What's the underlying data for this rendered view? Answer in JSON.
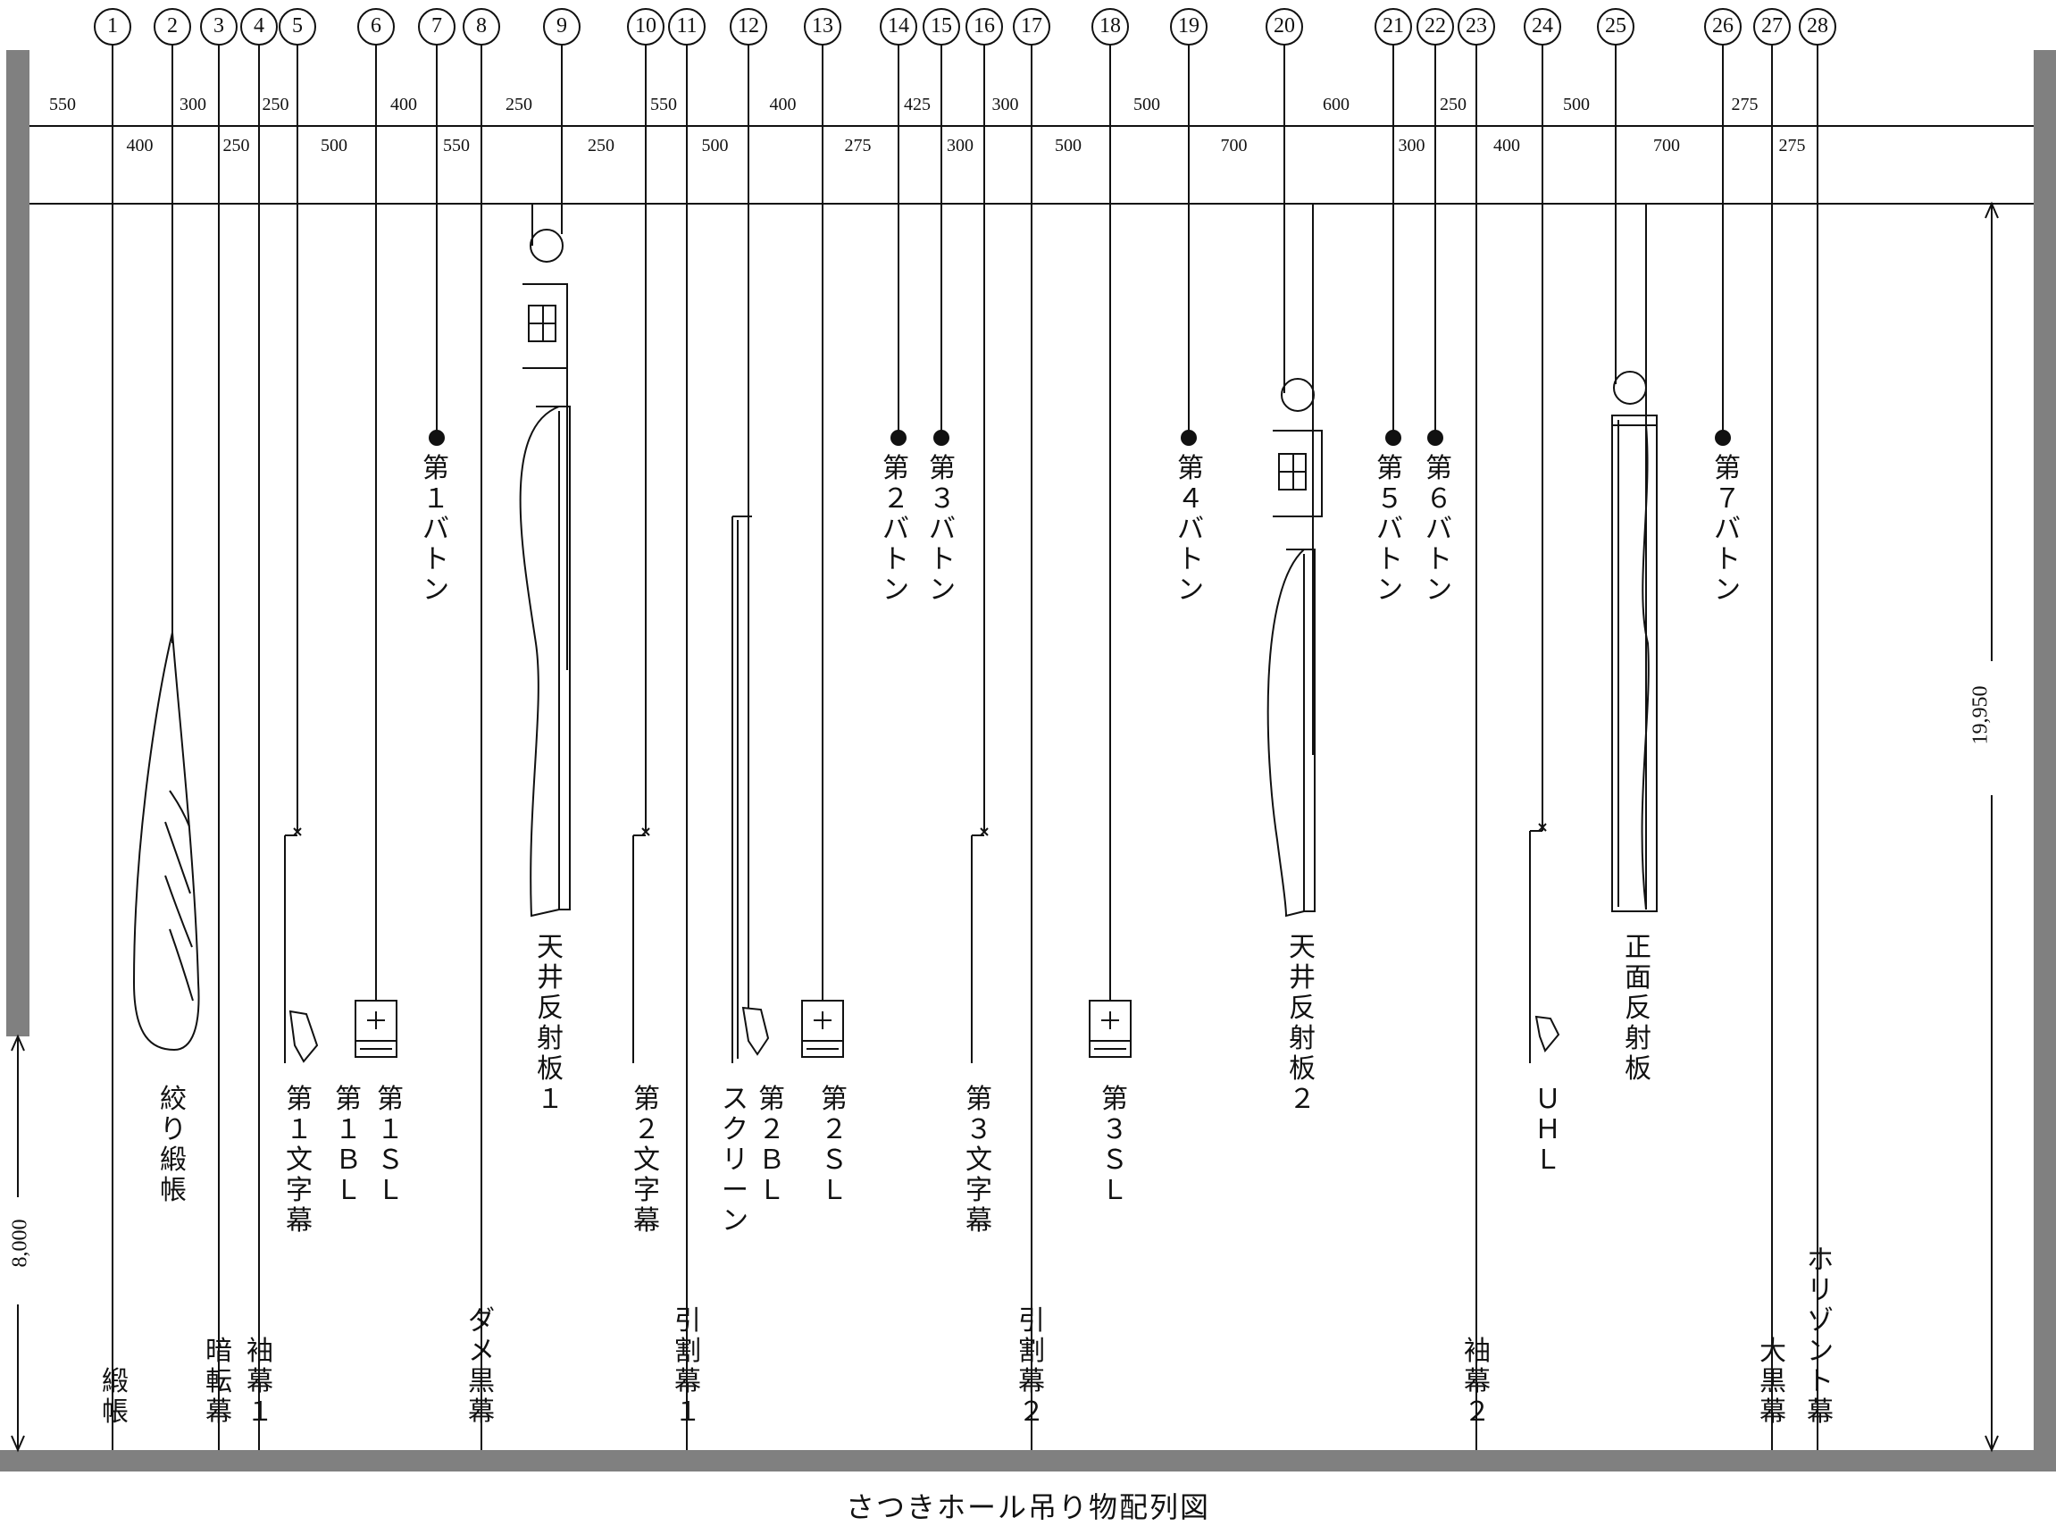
{
  "title": "さつきホール吊り物配列図",
  "colors": {
    "line": "#111111",
    "wall": "#808080"
  },
  "dims": {
    "height_total": "19,950",
    "height_lower": "8,000"
  },
  "spacing_top": [
    "550",
    "300",
    "250",
    "400",
    "250",
    "550",
    "400",
    "425",
    "300",
    "500",
    "600",
    "250",
    "500",
    "275"
  ],
  "spacing_bottom": [
    "400",
    "250",
    "500",
    "550",
    "250",
    "500",
    "275",
    "300",
    "500",
    "700",
    "300",
    "400",
    "700",
    "275"
  ],
  "battens": [
    "第１バトン",
    "第２バトン",
    "第３バトン",
    "第４バトン",
    "第５バトン",
    "第６バトン",
    "第７バトン"
  ],
  "labels": {
    "donchou": "緞帳",
    "shibori": "絞り緞帳",
    "anten": "暗転幕",
    "sode1": "袖幕１",
    "moji1": "第１文字幕",
    "bl1": "第１ＢＬ",
    "sl1": "第１ＳＬ",
    "dame": "ダメ黒幕",
    "tenjou1": "天井反射板１",
    "moji2": "第２文字幕",
    "hikiwari1": "引割幕１",
    "screen": "スクリーン",
    "bl2": "第２ＢＬ",
    "sl2": "第２ＳＬ",
    "moji3": "第３文字幕",
    "hikiwari2": "引割幕２",
    "sl3": "第３ＳＬ",
    "tenjou2": "天井反射板２",
    "sode2": "袖幕２",
    "uhl": "ＵＨＬ",
    "shoumen": "正面反射板",
    "ookuro": "大黒幕",
    "horizont": "ホリゾント幕"
  }
}
